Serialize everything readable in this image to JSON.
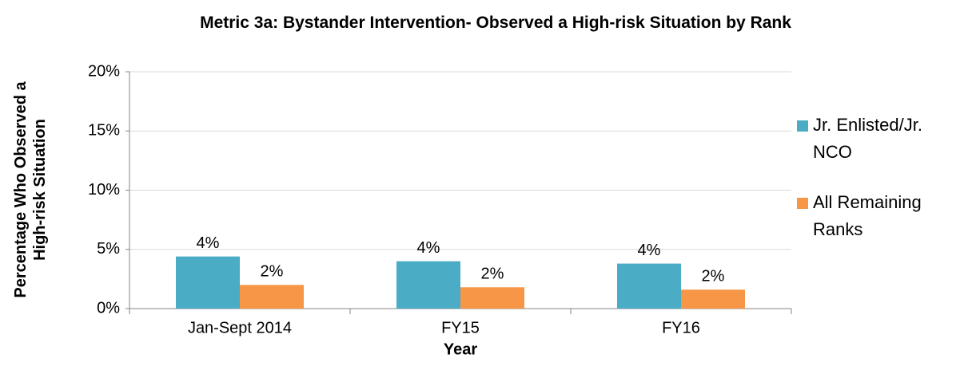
{
  "chart_data": {
    "type": "bar",
    "title": "Metric 3a: Bystander Intervention- Observed a High-risk Situation by Rank",
    "x_label": "Year",
    "y_label": "Percentage Who Observed a High-risk Situation",
    "categories": [
      "Jan-Sept 2014",
      "FY15",
      "FY16"
    ],
    "series": [
      {
        "name": "Jr. Enlisted/Jr. NCO",
        "color": "#4bacc6",
        "values": [
          4.4,
          4.0,
          3.8
        ],
        "value_labels": [
          "4%",
          "4%",
          "4%"
        ]
      },
      {
        "name": "All Remaining Ranks",
        "color": "#f79646",
        "values": [
          2.0,
          1.8,
          1.6
        ],
        "value_labels": [
          "2%",
          "2%",
          "2%"
        ]
      }
    ],
    "ylim": [
      0,
      20
    ],
    "yticks": [
      {
        "value": 0,
        "label": "0%"
      },
      {
        "value": 5,
        "label": "5%"
      },
      {
        "value": 10,
        "label": "10%"
      },
      {
        "value": 15,
        "label": "15%"
      },
      {
        "value": 20,
        "label": "20%"
      }
    ],
    "grid": true,
    "legend": "right"
  }
}
